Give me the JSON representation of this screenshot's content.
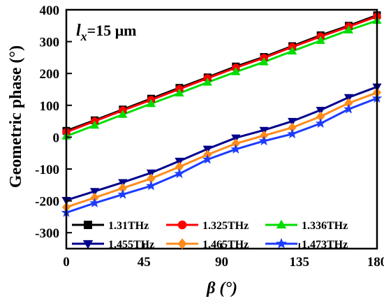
{
  "chart_data": {
    "type": "line",
    "xlabel": "β (°)",
    "ylabel": "Geometric phase (°)",
    "xlim": [
      0,
      180
    ],
    "ylim": [
      -350,
      400
    ],
    "xticks": [
      0,
      45,
      90,
      135,
      180
    ],
    "yticks": [
      -300,
      -200,
      -100,
      0,
      100,
      200,
      300,
      400
    ],
    "xtick_labels": [
      "0",
      "45",
      "90",
      "135",
      "180"
    ],
    "ytick_labels": [
      "-300",
      "-200",
      "-100",
      "0",
      "100",
      "200",
      "300",
      "400"
    ],
    "annotation": {
      "l": "l",
      "sub": "x",
      "rest": "=15 μm"
    },
    "legend_position": "bottom",
    "grid": false,
    "x": [
      0,
      16.4,
      32.7,
      49.1,
      65.5,
      81.8,
      98.2,
      114.5,
      130.9,
      147.3,
      163.6,
      180
    ],
    "series": [
      {
        "name": "1.31THz",
        "color": "#000000",
        "marker": "square",
        "values": [
          20,
          53,
          87,
          121,
          155,
          188,
          222,
          252,
          286,
          320,
          350,
          383
        ]
      },
      {
        "name": "1.325THz",
        "color": "#ff0000",
        "marker": "circle",
        "values": [
          16,
          50,
          84,
          117,
          151,
          185,
          218,
          249,
          283,
          316,
          347,
          379
        ]
      },
      {
        "name": "1.336THz",
        "color": "#00dd00",
        "marker": "triangle-up",
        "values": [
          3,
          37,
          71,
          105,
          138,
          172,
          205,
          236,
          270,
          303,
          336,
          366
        ]
      },
      {
        "name": "1.455THz",
        "color": "#00008b",
        "marker": "triangle-down",
        "values": [
          -198,
          -170,
          -142,
          -112,
          -75,
          -37,
          -2,
          22,
          50,
          85,
          125,
          158
        ]
      },
      {
        "name": "1.465THz",
        "color": "#ff8c1a",
        "marker": "diamond",
        "values": [
          -220,
          -190,
          -160,
          -130,
          -93,
          -55,
          -20,
          5,
          30,
          65,
          107,
          140
        ]
      },
      {
        "name": "1.473THz",
        "color": "#1c3cff",
        "marker": "star",
        "values": [
          -237,
          -207,
          -180,
          -153,
          -115,
          -70,
          -38,
          -12,
          10,
          43,
          88,
          122
        ]
      }
    ]
  }
}
